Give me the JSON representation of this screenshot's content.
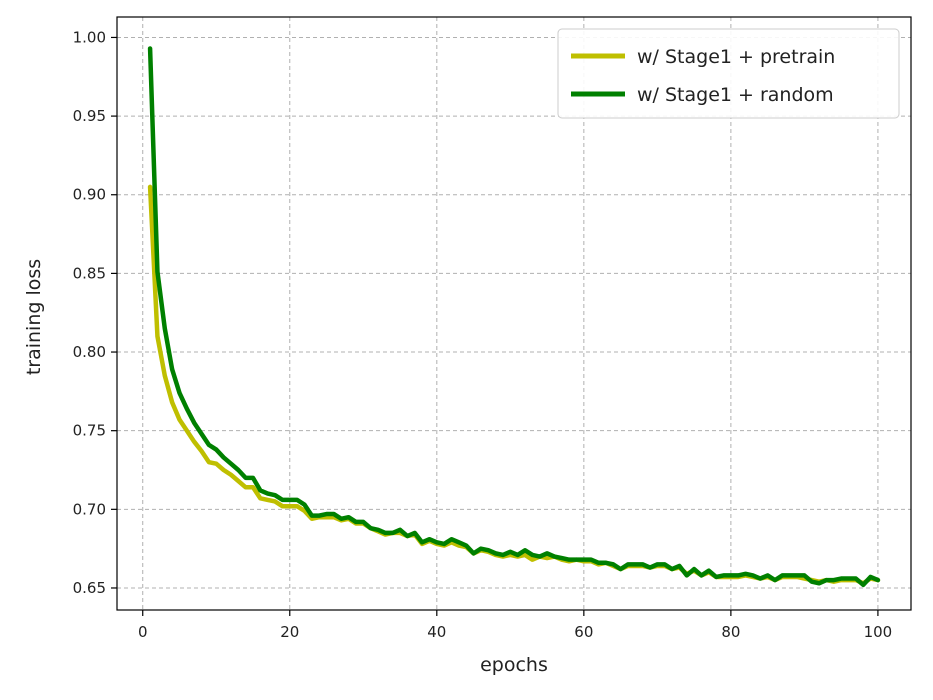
{
  "chart_data": {
    "type": "line",
    "title": "",
    "xlabel": "epochs",
    "ylabel": "training loss",
    "xlim": [
      -3.5,
      104.5
    ],
    "ylim": [
      0.636,
      1.013
    ],
    "x_ticks": [
      0,
      20,
      40,
      60,
      80,
      100
    ],
    "x_tick_labels": [
      "0",
      "20",
      "40",
      "60",
      "80",
      "100"
    ],
    "y_ticks": [
      0.65,
      0.7,
      0.75,
      0.8,
      0.85,
      0.9,
      0.95,
      1.0
    ],
    "y_tick_labels": [
      "0.65",
      "0.70",
      "0.75",
      "0.80",
      "0.85",
      "0.90",
      "0.95",
      "1.00"
    ],
    "grid": true,
    "legend_position": "top-right",
    "series": [
      {
        "name": "w/ Stage1 + pretrain",
        "color": "#bfbf00",
        "x": [
          1,
          2,
          3,
          4,
          5,
          6,
          7,
          8,
          9,
          10,
          11,
          12,
          13,
          14,
          15,
          16,
          17,
          18,
          19,
          20,
          21,
          22,
          23,
          24,
          25,
          26,
          27,
          28,
          29,
          30,
          31,
          32,
          33,
          34,
          35,
          36,
          37,
          38,
          39,
          40,
          41,
          42,
          43,
          44,
          45,
          46,
          47,
          48,
          49,
          50,
          51,
          52,
          53,
          54,
          55,
          56,
          57,
          58,
          59,
          60,
          61,
          62,
          63,
          64,
          65,
          66,
          67,
          68,
          69,
          70,
          71,
          72,
          73,
          74,
          75,
          76,
          77,
          78,
          79,
          80,
          81,
          82,
          83,
          84,
          85,
          86,
          87,
          88,
          89,
          90,
          91,
          92,
          93,
          94,
          95,
          96,
          97,
          98,
          99,
          100
        ],
        "y": [
          0.905,
          0.81,
          0.785,
          0.768,
          0.757,
          0.75,
          0.743,
          0.737,
          0.73,
          0.729,
          0.725,
          0.722,
          0.718,
          0.714,
          0.714,
          0.707,
          0.706,
          0.705,
          0.702,
          0.702,
          0.702,
          0.699,
          0.694,
          0.695,
          0.695,
          0.695,
          0.693,
          0.694,
          0.691,
          0.691,
          0.688,
          0.686,
          0.684,
          0.685,
          0.685,
          0.683,
          0.684,
          0.678,
          0.68,
          0.678,
          0.677,
          0.679,
          0.677,
          0.676,
          0.672,
          0.674,
          0.673,
          0.671,
          0.67,
          0.671,
          0.67,
          0.671,
          0.668,
          0.67,
          0.669,
          0.67,
          0.668,
          0.667,
          0.668,
          0.667,
          0.667,
          0.665,
          0.666,
          0.664,
          0.662,
          0.664,
          0.664,
          0.664,
          0.663,
          0.664,
          0.664,
          0.662,
          0.663,
          0.659,
          0.661,
          0.658,
          0.66,
          0.657,
          0.657,
          0.657,
          0.657,
          0.658,
          0.657,
          0.656,
          0.657,
          0.655,
          0.657,
          0.657,
          0.657,
          0.656,
          0.655,
          0.654,
          0.655,
          0.654,
          0.655,
          0.655,
          0.655,
          0.653,
          0.656,
          0.655
        ]
      },
      {
        "name": "w/ Stage1 + random",
        "color": "#008000",
        "x": [
          1,
          2,
          3,
          4,
          5,
          6,
          7,
          8,
          9,
          10,
          11,
          12,
          13,
          14,
          15,
          16,
          17,
          18,
          19,
          20,
          21,
          22,
          23,
          24,
          25,
          26,
          27,
          28,
          29,
          30,
          31,
          32,
          33,
          34,
          35,
          36,
          37,
          38,
          39,
          40,
          41,
          42,
          43,
          44,
          45,
          46,
          47,
          48,
          49,
          50,
          51,
          52,
          53,
          54,
          55,
          56,
          57,
          58,
          59,
          60,
          61,
          62,
          63,
          64,
          65,
          66,
          67,
          68,
          69,
          70,
          71,
          72,
          73,
          74,
          75,
          76,
          77,
          78,
          79,
          80,
          81,
          82,
          83,
          84,
          85,
          86,
          87,
          88,
          89,
          90,
          91,
          92,
          93,
          94,
          95,
          96,
          97,
          98,
          99,
          100
        ],
        "y": [
          0.993,
          0.851,
          0.815,
          0.789,
          0.774,
          0.764,
          0.755,
          0.748,
          0.741,
          0.738,
          0.733,
          0.729,
          0.725,
          0.72,
          0.72,
          0.712,
          0.71,
          0.709,
          0.706,
          0.706,
          0.706,
          0.703,
          0.696,
          0.696,
          0.697,
          0.697,
          0.694,
          0.695,
          0.692,
          0.692,
          0.688,
          0.687,
          0.685,
          0.685,
          0.687,
          0.683,
          0.685,
          0.679,
          0.681,
          0.679,
          0.678,
          0.681,
          0.679,
          0.677,
          0.672,
          0.675,
          0.674,
          0.672,
          0.671,
          0.673,
          0.671,
          0.674,
          0.671,
          0.67,
          0.672,
          0.67,
          0.669,
          0.668,
          0.668,
          0.668,
          0.668,
          0.666,
          0.666,
          0.665,
          0.662,
          0.665,
          0.665,
          0.665,
          0.663,
          0.665,
          0.665,
          0.662,
          0.664,
          0.658,
          0.662,
          0.658,
          0.661,
          0.657,
          0.658,
          0.658,
          0.658,
          0.659,
          0.658,
          0.656,
          0.658,
          0.655,
          0.658,
          0.658,
          0.658,
          0.658,
          0.654,
          0.653,
          0.655,
          0.655,
          0.656,
          0.656,
          0.656,
          0.652,
          0.657,
          0.655
        ]
      }
    ]
  }
}
